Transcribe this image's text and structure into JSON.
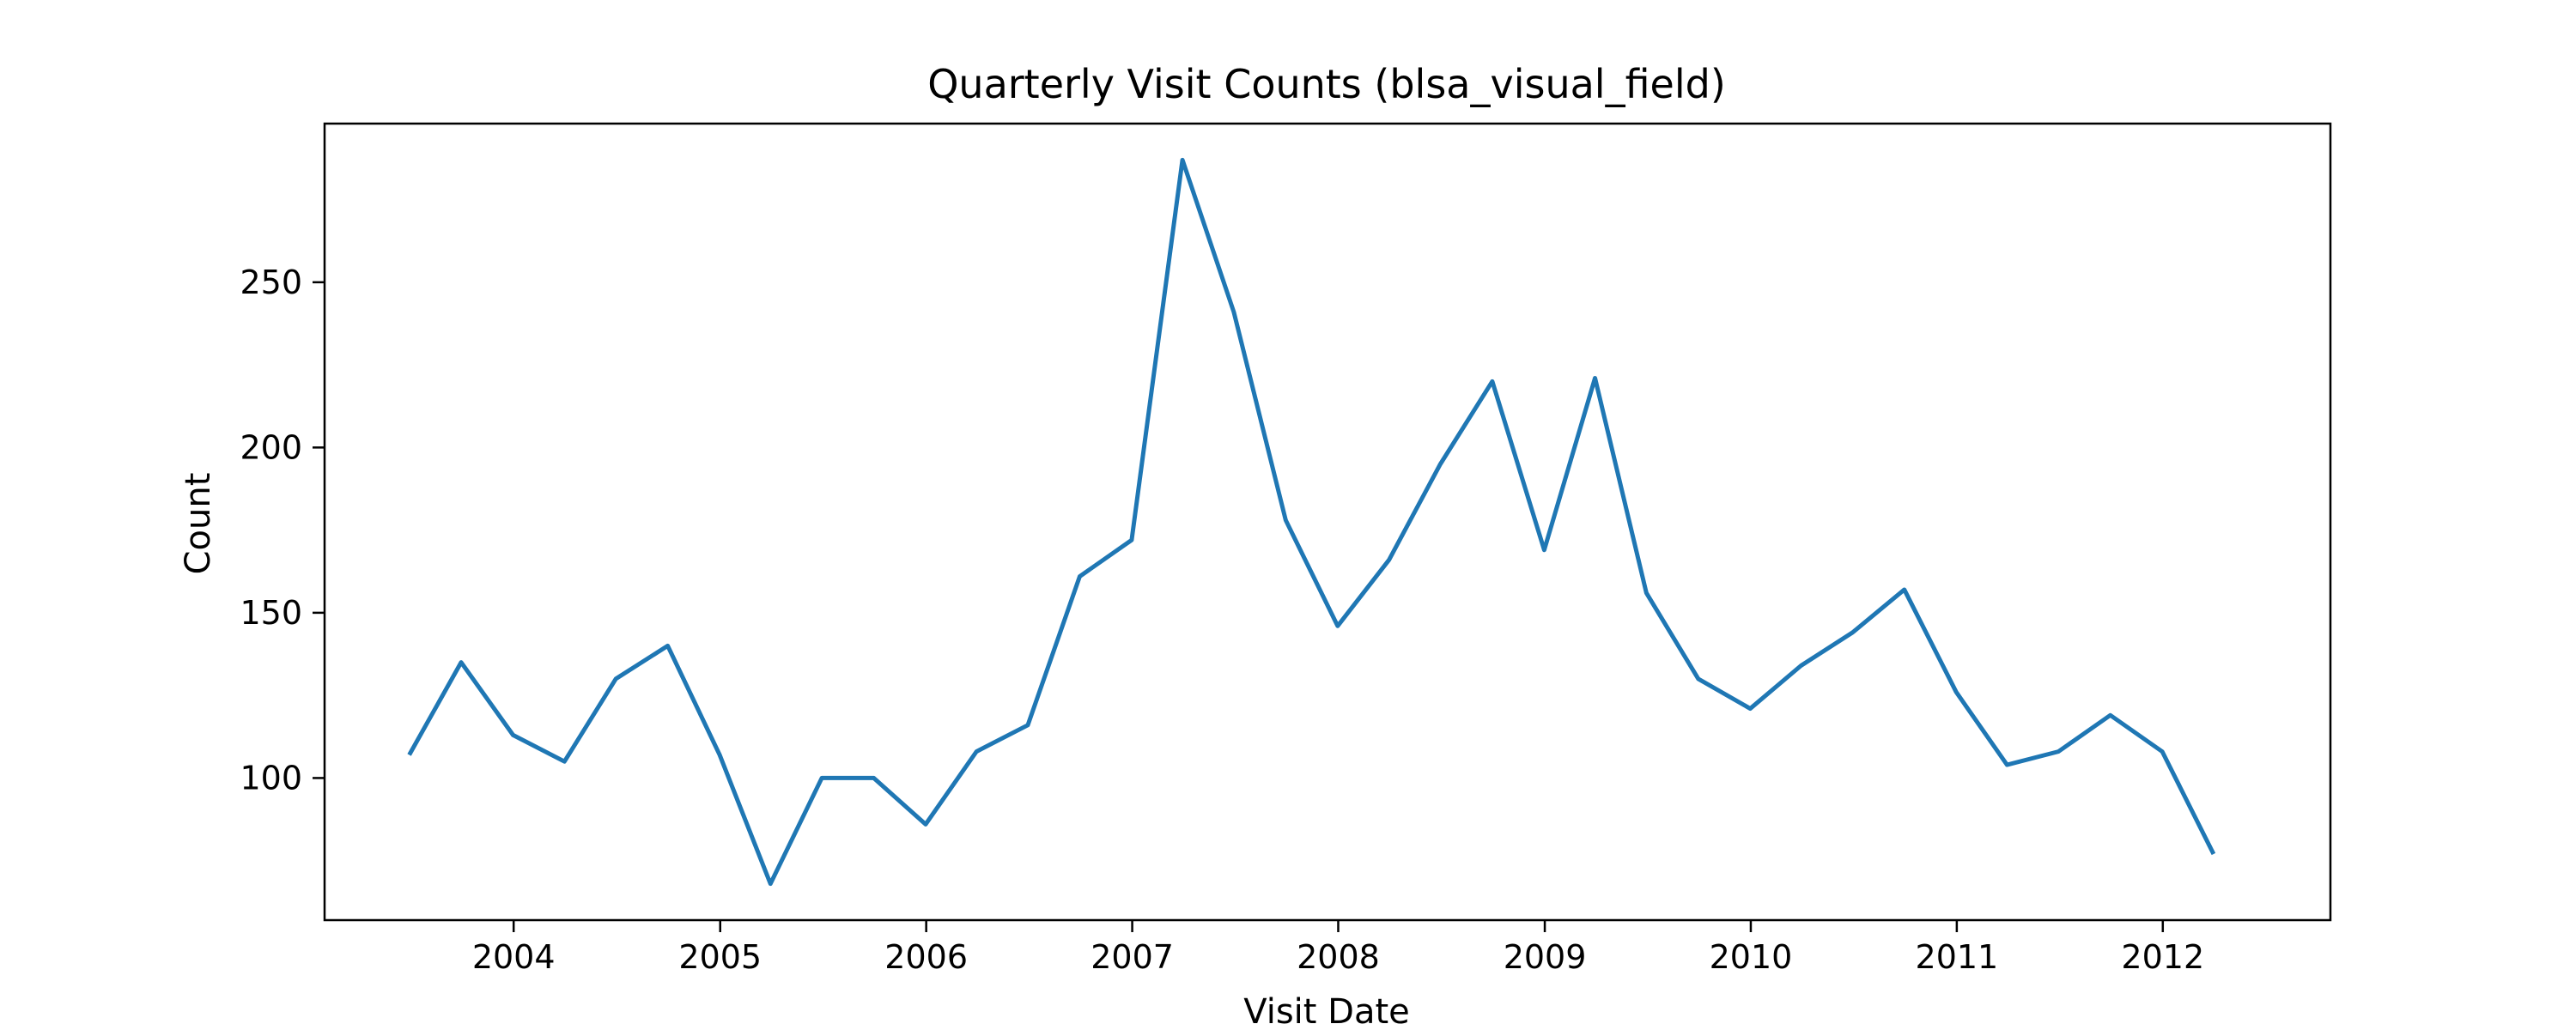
{
  "chart_data": {
    "type": "line",
    "title": "Quarterly Visit Counts (blsa_visual_field)",
    "xlabel": "Visit Date",
    "ylabel": "Count",
    "x_tick_labels": [
      "2004",
      "2005",
      "2006",
      "2007",
      "2008",
      "2009",
      "2010",
      "2011",
      "2012"
    ],
    "y_tick_labels": [
      "100",
      "150",
      "200",
      "250"
    ],
    "x_tick_values": [
      "2004-01-01",
      "2005-01-01",
      "2006-01-01",
      "2007-01-01",
      "2008-01-01",
      "2009-01-01",
      "2010-01-01",
      "2011-01-01",
      "2012-01-01"
    ],
    "y_tick_values": [
      100,
      150,
      200,
      250
    ],
    "xlim": [
      "2003-01-31",
      "2012-10-24"
    ],
    "ylim": [
      57,
      298
    ],
    "grid": false,
    "series": [
      {
        "color": "#1f77b4",
        "x": [
          "2003-06-30",
          "2003-09-30",
          "2003-12-31",
          "2004-03-31",
          "2004-06-30",
          "2004-09-30",
          "2004-12-31",
          "2005-03-31",
          "2005-06-30",
          "2005-09-30",
          "2005-12-31",
          "2006-03-31",
          "2006-06-30",
          "2006-09-30",
          "2006-12-31",
          "2007-03-31",
          "2007-06-30",
          "2007-09-30",
          "2007-12-31",
          "2008-03-31",
          "2008-06-30",
          "2008-09-30",
          "2008-12-31",
          "2009-03-31",
          "2009-06-30",
          "2009-09-30",
          "2009-12-31",
          "2010-03-31",
          "2010-06-30",
          "2010-09-30",
          "2010-12-31",
          "2011-03-31",
          "2011-06-30",
          "2011-09-30",
          "2011-12-31",
          "2012-03-31"
        ],
        "values": [
          107,
          135,
          113,
          105,
          130,
          140,
          107,
          68,
          100,
          100,
          86,
          108,
          116,
          161,
          172,
          287,
          241,
          178,
          146,
          166,
          195,
          220,
          169,
          221,
          156,
          130,
          121,
          134,
          144,
          157,
          126,
          104,
          108,
          119,
          108,
          77
        ]
      }
    ]
  }
}
